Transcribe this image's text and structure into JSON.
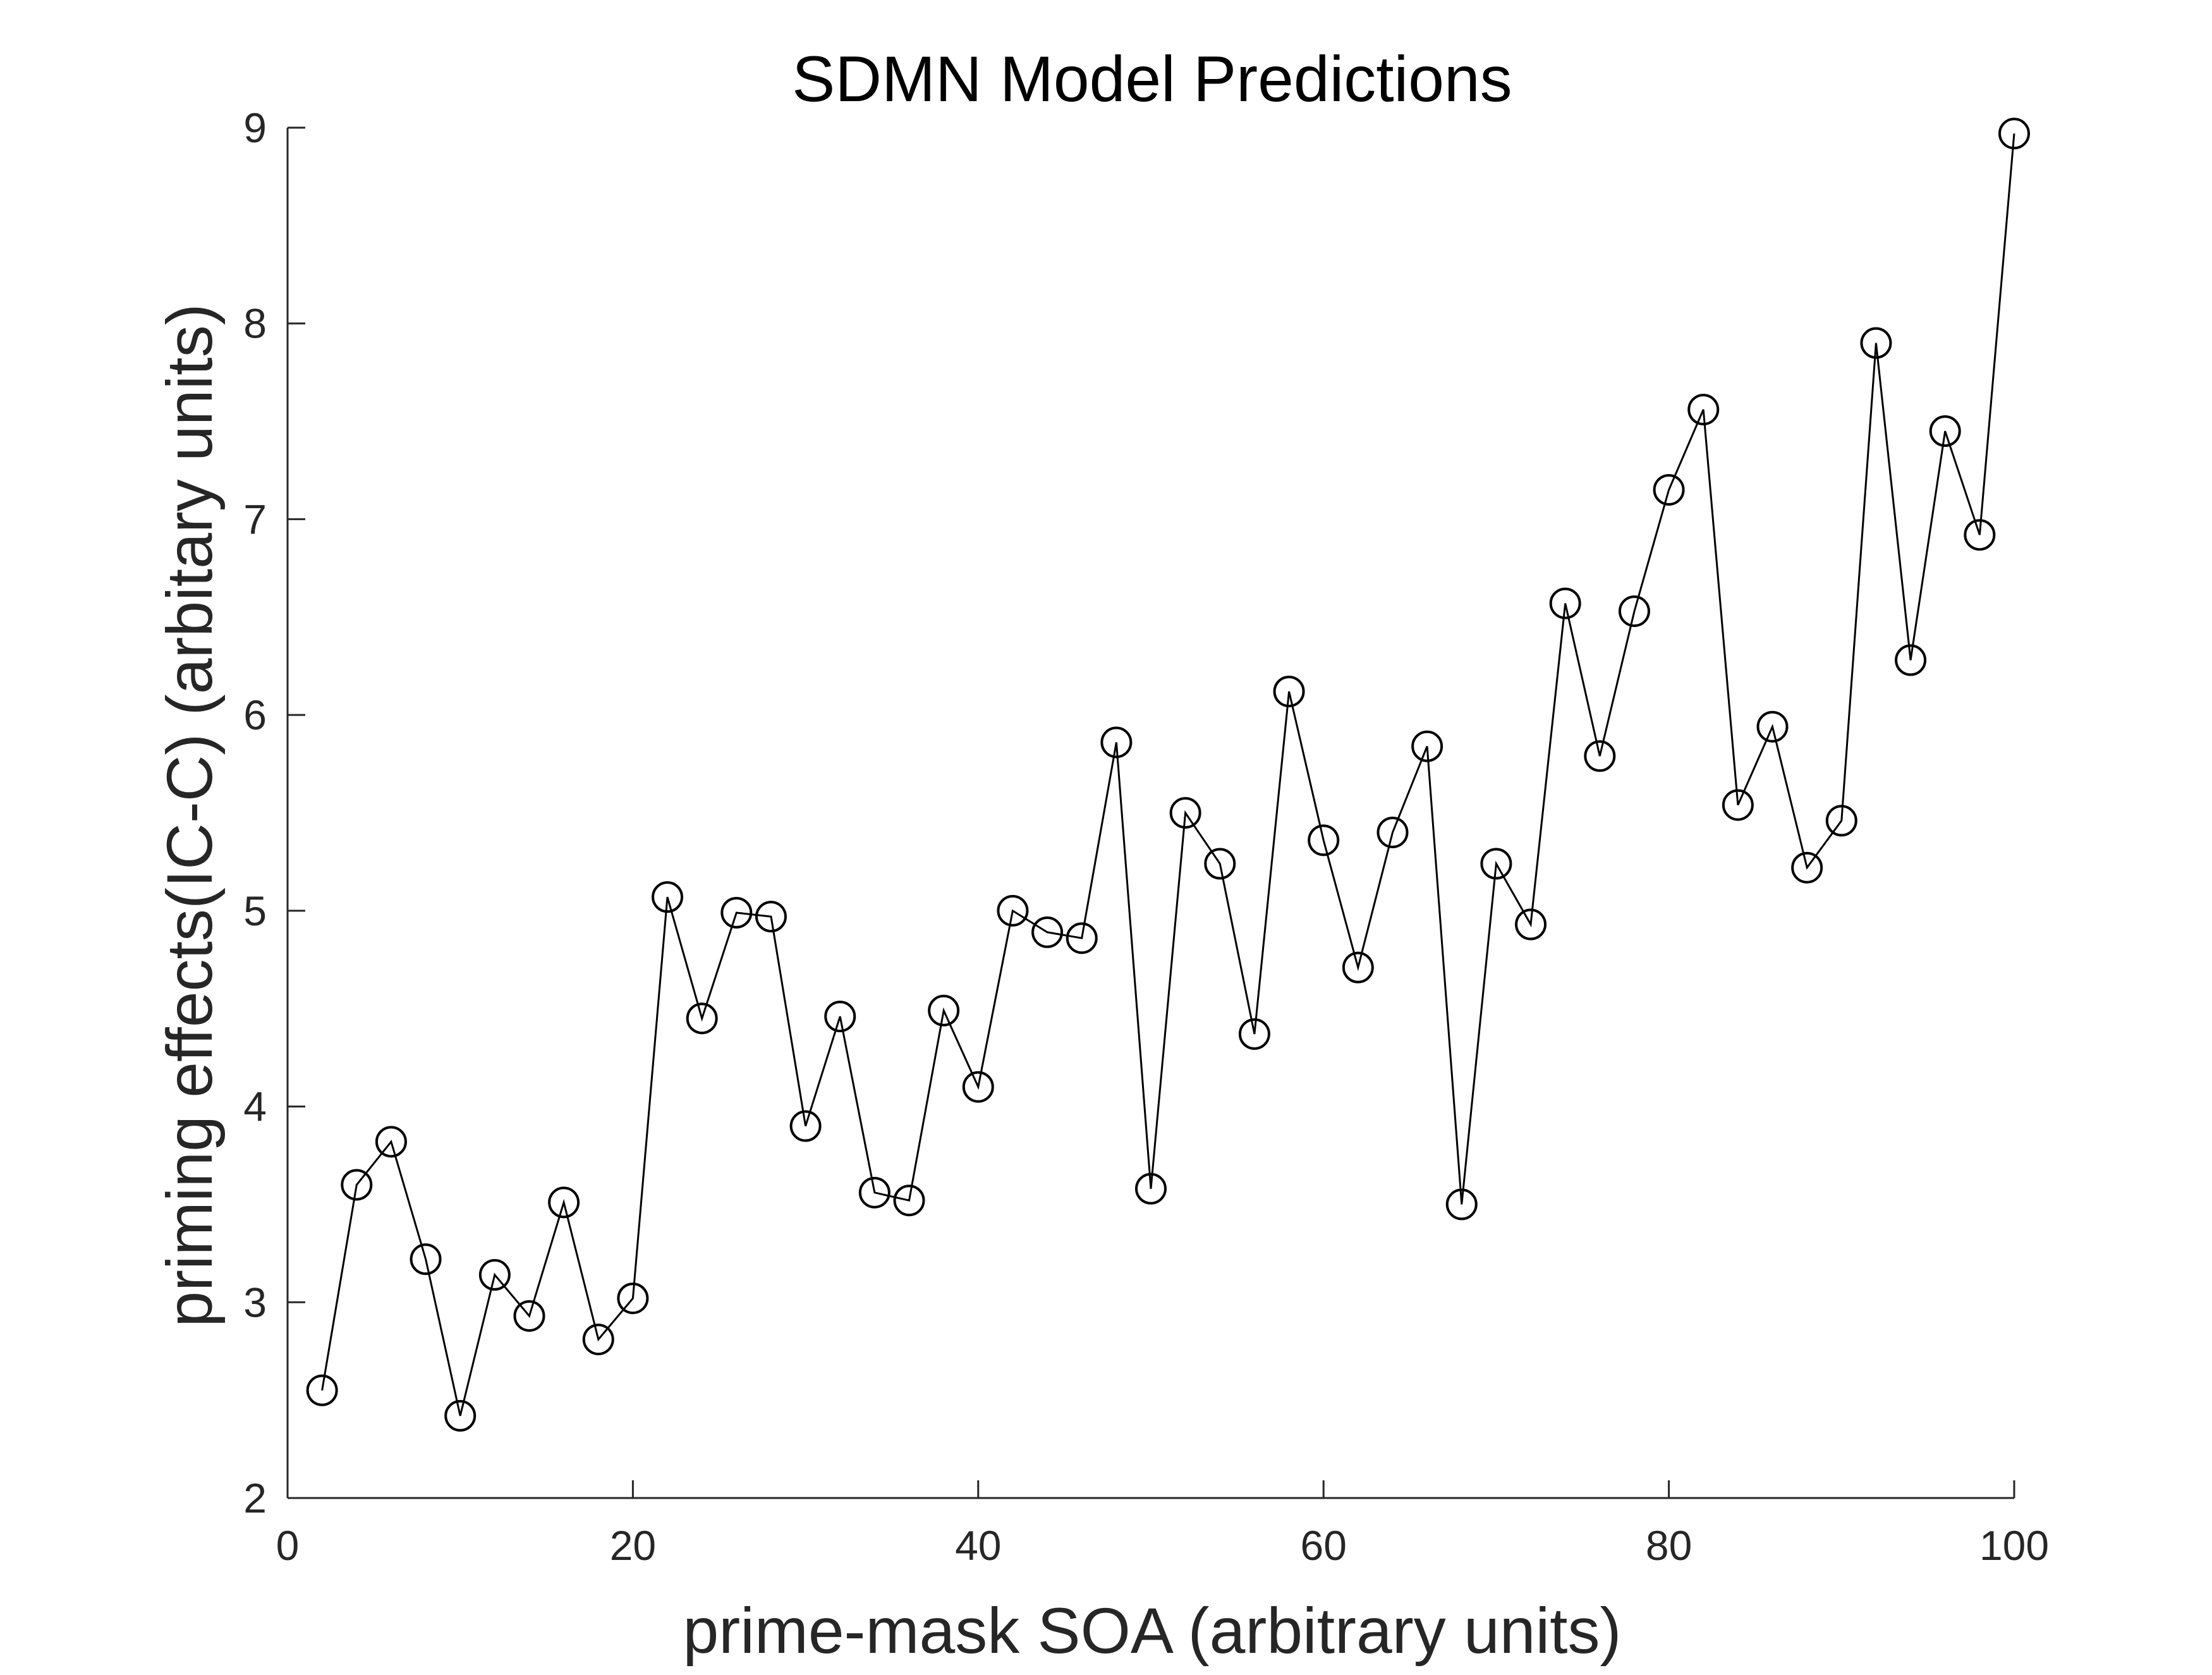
{
  "chart_data": {
    "type": "line",
    "title": "SDMN Model Predictions",
    "xlabel": "prime-mask SOA (arbitrary units)",
    "ylabel": "priming effects(IC-C) (arbitary units)",
    "xlim": [
      0,
      100
    ],
    "ylim": [
      2,
      9
    ],
    "xticks": [
      0,
      20,
      40,
      60,
      80,
      100
    ],
    "yticks": [
      2,
      3,
      4,
      5,
      6,
      7,
      8,
      9
    ],
    "grid": false,
    "legend": null,
    "marker": "circle-open",
    "line_color": "#000000",
    "axis_color": "#262626",
    "series": [
      {
        "x": [
          2,
          4,
          6,
          8,
          10,
          12,
          14,
          16,
          18,
          20,
          22,
          24,
          26,
          28,
          30,
          32,
          34,
          36,
          38,
          40,
          42,
          44,
          46,
          48,
          50,
          52,
          54,
          56,
          58,
          60,
          62,
          64,
          66,
          68,
          70,
          72,
          74,
          76,
          78,
          80,
          82,
          84,
          86,
          88,
          90,
          92,
          94,
          96,
          98,
          100
        ],
        "values": [
          2.55,
          3.6,
          3.82,
          3.22,
          2.42,
          3.14,
          2.93,
          3.51,
          2.81,
          3.02,
          5.07,
          4.45,
          4.99,
          4.97,
          3.9,
          4.46,
          3.56,
          3.52,
          4.49,
          4.1,
          5.0,
          4.89,
          4.86,
          5.86,
          3.58,
          5.5,
          5.24,
          4.37,
          6.12,
          5.36,
          4.71,
          5.4,
          5.84,
          3.5,
          5.24,
          4.93,
          6.57,
          5.79,
          6.53,
          7.15,
          7.56,
          5.54,
          5.94,
          5.22,
          5.46,
          7.9,
          6.28,
          7.45,
          6.92,
          8.97
        ]
      }
    ]
  }
}
